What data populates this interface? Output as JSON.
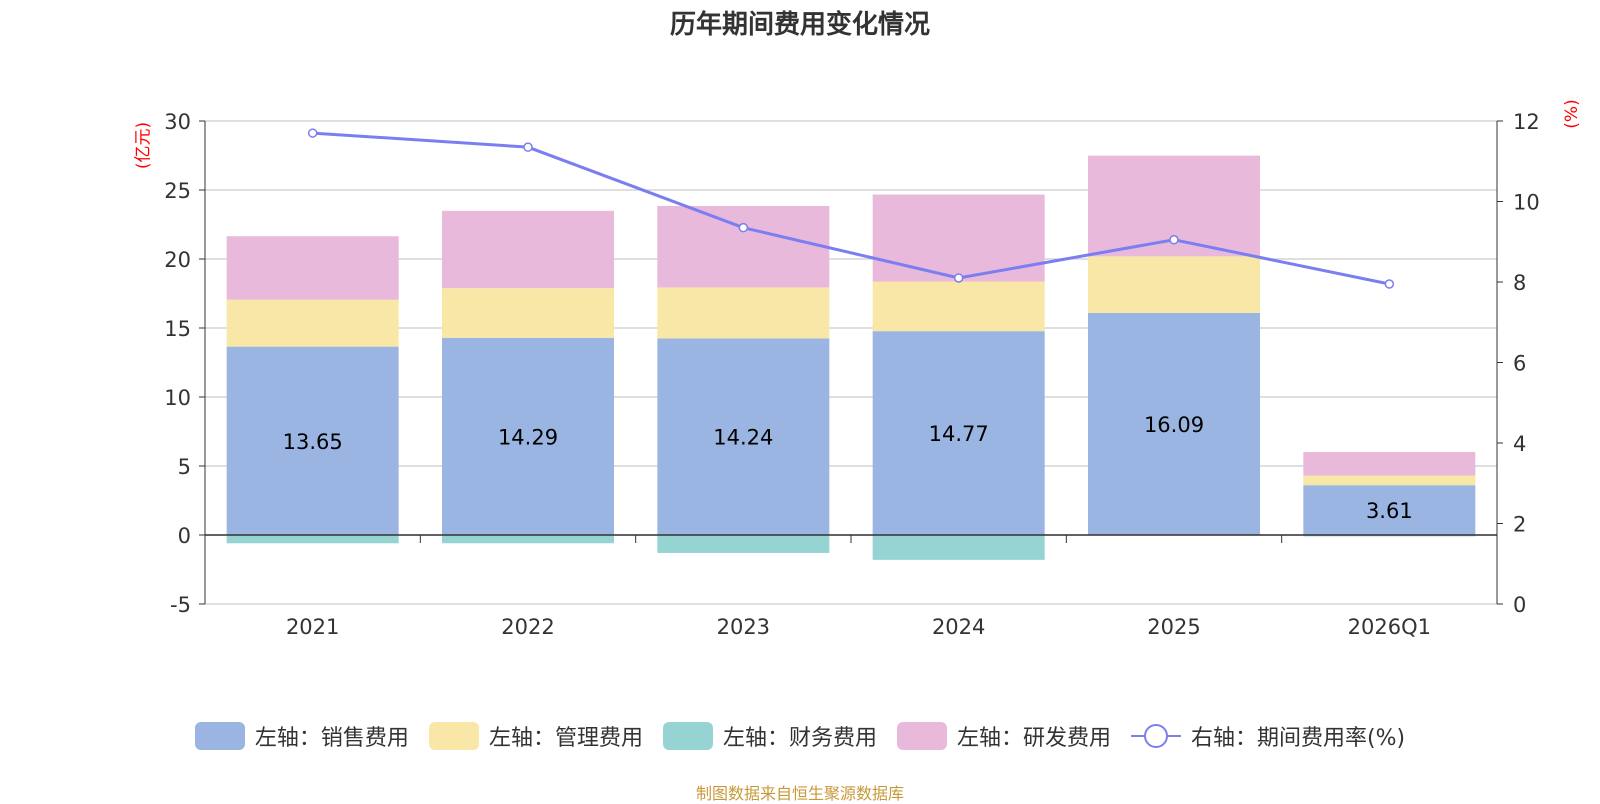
{
  "chart_data": {
    "type": "bar",
    "title": "历年期间费用变化情况",
    "categories": [
      "2021",
      "2022",
      "2023",
      "2024",
      "2025",
      "2026Q1"
    ],
    "series": [
      {
        "name": "左轴：销售费用",
        "axis": "left",
        "color": "#9ab5e1",
        "values": [
          13.65,
          14.29,
          14.24,
          14.77,
          16.09,
          3.61
        ],
        "labels": [
          "13.65",
          "14.29",
          "14.24",
          "14.77",
          "16.09",
          "3.61"
        ]
      },
      {
        "name": "左轴：管理费用",
        "axis": "left",
        "color": "#f8e7a6",
        "values": [
          3.4,
          3.6,
          3.7,
          3.6,
          4.1,
          0.7
        ]
      },
      {
        "name": "左轴：财务费用",
        "axis": "left",
        "color": "#96d4d3",
        "values": [
          -0.6,
          -0.6,
          -1.3,
          -1.8,
          0.0,
          -0.1
        ]
      },
      {
        "name": "左轴：研发费用",
        "axis": "left",
        "color": "#e8b9da",
        "values": [
          4.6,
          5.6,
          5.9,
          6.3,
          7.3,
          1.7
        ]
      },
      {
        "name": "右轴：期间费用率(%)",
        "axis": "right",
        "type": "line",
        "color": "#7b7ef0",
        "values": [
          11.7,
          11.35,
          9.35,
          8.1,
          9.05,
          7.95
        ]
      }
    ],
    "left_axis": {
      "label": "(亿元)",
      "ylim": [
        -5,
        30
      ],
      "ticks": [
        "-5",
        "0",
        "5",
        "10",
        "15",
        "20",
        "25",
        "30"
      ]
    },
    "right_axis": {
      "label": "(%)",
      "ylim": [
        0,
        12
      ],
      "ticks": [
        "0",
        "2",
        "4",
        "6",
        "8",
        "10",
        "12"
      ]
    },
    "grid": true,
    "legend_position": "bottom"
  },
  "source_text": "制图数据来自恒生聚源数据库"
}
